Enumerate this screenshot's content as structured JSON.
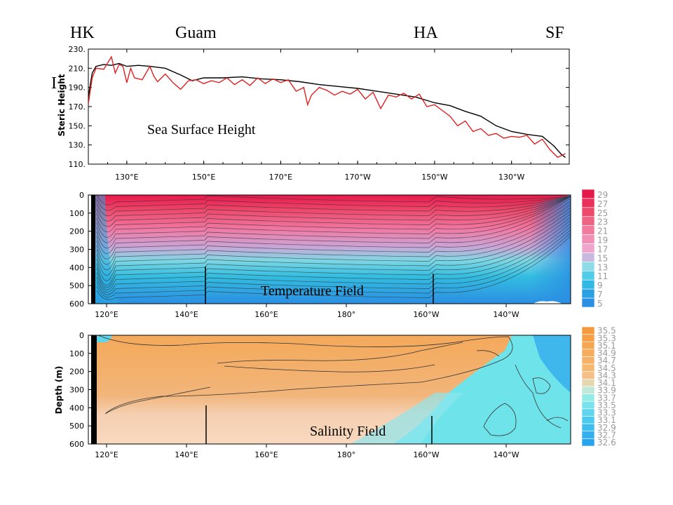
{
  "stations": [
    {
      "label": "HK"
    },
    {
      "label": "Guam"
    },
    {
      "label": "HA"
    },
    {
      "label": "SF"
    }
  ],
  "cut_letter": "I",
  "chart_data": [
    {
      "type": "line",
      "title": "Sea Surface Height",
      "ylabel": "Steric Height",
      "ylim": [
        110,
        230
      ],
      "yticks": [
        "230.",
        "210.",
        "190.",
        "170.",
        "150.",
        "130.",
        "110."
      ],
      "xticks": [
        "130°E",
        "150°E",
        "170°E",
        "170°W",
        "150°W",
        "130°W"
      ],
      "xlim": [
        120,
        245
      ],
      "series": [
        {
          "color": "#000000",
          "x": [
            120,
            121,
            122,
            124,
            126,
            128,
            130,
            133,
            136,
            140,
            144,
            147,
            150,
            155,
            160,
            165,
            170,
            175,
            180,
            185,
            190,
            195,
            200,
            205,
            210,
            214,
            218,
            222,
            226,
            230,
            234,
            238,
            241,
            243,
            244
          ],
          "y": [
            180,
            205,
            212,
            214,
            213,
            215,
            212,
            213,
            212,
            210,
            203,
            197,
            200,
            200,
            201,
            199,
            198,
            196,
            193,
            191,
            189,
            186,
            183,
            180,
            174,
            171,
            165,
            160,
            150,
            144,
            141,
            139,
            129,
            120,
            117
          ]
        },
        {
          "color": "#e02020",
          "x": [
            120,
            121,
            122,
            124,
            126,
            127,
            128,
            129,
            130,
            131,
            132,
            134,
            136,
            137,
            138,
            140,
            142,
            144,
            146,
            148,
            150,
            152,
            154,
            156,
            158,
            160,
            162,
            164,
            166,
            168,
            170,
            172,
            174,
            176,
            177,
            178,
            180,
            182,
            184,
            186,
            188,
            190,
            192,
            194,
            196,
            198,
            200,
            202,
            204,
            206,
            208,
            210,
            212,
            214,
            216,
            218,
            220,
            222,
            224,
            226,
            228,
            230,
            232,
            234,
            236,
            238,
            240,
            242,
            244
          ],
          "y": [
            173,
            200,
            210,
            209,
            222,
            205,
            214,
            212,
            195,
            210,
            200,
            198,
            212,
            202,
            196,
            204,
            195,
            188,
            197,
            198,
            194,
            197,
            195,
            200,
            193,
            198,
            192,
            200,
            194,
            199,
            195,
            198,
            186,
            190,
            172,
            182,
            190,
            187,
            182,
            186,
            183,
            188,
            178,
            185,
            168,
            182,
            180,
            184,
            178,
            183,
            170,
            172,
            166,
            160,
            150,
            155,
            144,
            147,
            140,
            142,
            137,
            139,
            138,
            140,
            131,
            136,
            125,
            117,
            121
          ]
        }
      ]
    },
    {
      "type": "heatmap",
      "title": "Temperature Field",
      "ylim": [
        0,
        600
      ],
      "yticks": [
        "0",
        "100",
        "200",
        "300",
        "400",
        "500",
        "600"
      ],
      "xticks": [
        "120°E",
        "140°E",
        "160°E",
        "180°",
        "160°W",
        "140°W"
      ],
      "legend_levels": [
        "29",
        "27",
        "25",
        "23",
        "21",
        "19",
        "17",
        "15",
        "13",
        "11",
        "9",
        "7",
        "5"
      ]
    },
    {
      "type": "heatmap",
      "title": "Salinity Field",
      "ylabel": "Depth (m)",
      "ylim": [
        0,
        600
      ],
      "yticks": [
        "0",
        "100",
        "200",
        "300",
        "400",
        "500",
        "600"
      ],
      "xticks": [
        "120°E",
        "140°E",
        "160°E",
        "180°",
        "160°W",
        "140°W"
      ],
      "legend_levels": [
        "35.5",
        "35.3",
        "35.1",
        "34.9",
        "34.7",
        "34.5",
        "34.3",
        "34.1",
        "33.9",
        "33.7",
        "33.5",
        "33.3",
        "33.1",
        "32.9",
        "32.7",
        "32.6"
      ]
    }
  ]
}
